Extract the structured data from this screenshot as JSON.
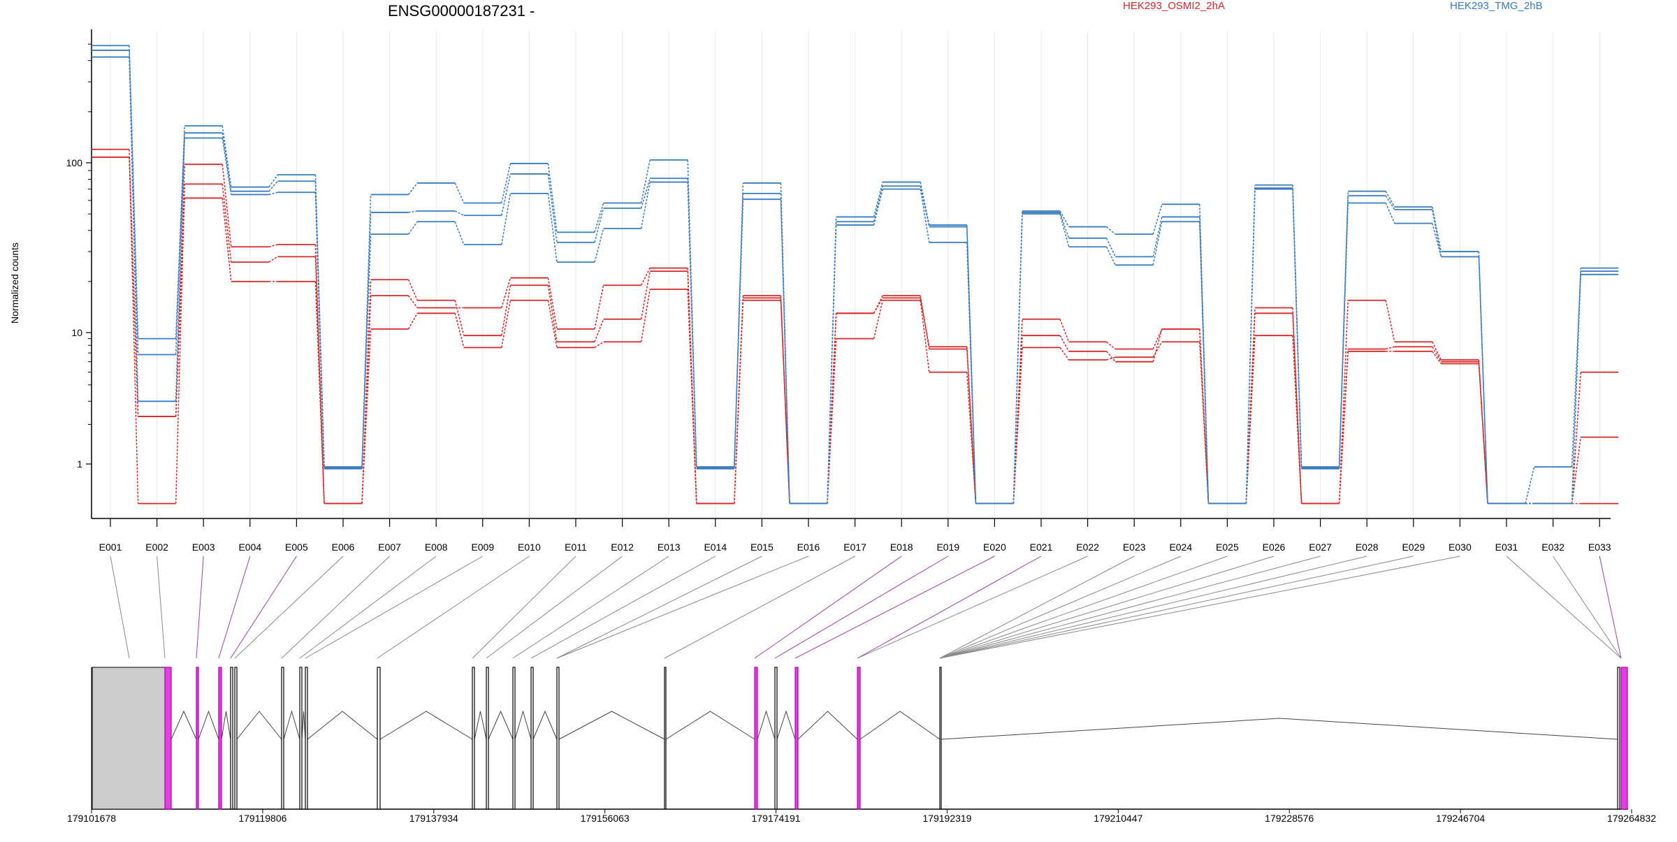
{
  "chart_data": {
    "type": "line",
    "title": "ENSG00000187231 -",
    "ylabel": "Normalized counts",
    "xlabel": "",
    "y_scale": "log",
    "y_ticks": [
      "1",
      "10",
      "100"
    ],
    "categories": [
      "E001",
      "E002",
      "E003",
      "E004",
      "E005",
      "E006",
      "E007",
      "E008",
      "E009",
      "E010",
      "E011",
      "E012",
      "E013",
      "E014",
      "E015",
      "E016",
      "E017",
      "E018",
      "E019",
      "E020",
      "E021",
      "E022",
      "E023",
      "E024",
      "E025",
      "E026",
      "E027",
      "E028",
      "E029",
      "E030",
      "E031",
      "E032",
      "E033"
    ],
    "groups": [
      {
        "name": "HEK293_OSMI2_2hA",
        "color": "#d62728"
      },
      {
        "name": "HEK293_TMG_2hB",
        "color": "#3a7bbf"
      }
    ],
    "series": [
      {
        "group": 0,
        "values": [
          120,
          0.5,
          75,
          26,
          28,
          0.5,
          16.5,
          14,
          14,
          21,
          10.5,
          19,
          24,
          0.5,
          16.5,
          0.5,
          13,
          16.5,
          7.5,
          0.5,
          12,
          8.5,
          7.5,
          10.5,
          0.5,
          14,
          0.5,
          15.5,
          8.5,
          6.2,
          0.5,
          0.5,
          5
        ]
      },
      {
        "group": 0,
        "values": [
          108,
          2.3,
          98,
          32,
          33,
          0.5,
          20.5,
          15.5,
          9.5,
          19,
          8.5,
          12,
          23,
          0.5,
          16,
          0.5,
          13,
          16,
          7.8,
          0.5,
          9.5,
          7.2,
          6,
          10.5,
          0.5,
          13,
          0.5,
          7.5,
          7.8,
          6,
          0.5,
          0.5,
          1.6
        ]
      },
      {
        "group": 0,
        "values": [
          108,
          2.3,
          62,
          20,
          20,
          0.5,
          10.5,
          13,
          7.7,
          15.5,
          7.7,
          8.5,
          18,
          0.5,
          15.5,
          0.5,
          9,
          15.5,
          5,
          0.5,
          7.7,
          6.2,
          6.5,
          8.5,
          0.5,
          9.5,
          0.5,
          7.2,
          7.2,
          5.8,
          0.5,
          0.5,
          0.5
        ]
      },
      {
        "group": 1,
        "values": [
          490,
          9,
          165,
          72,
          85,
          0.95,
          65,
          76,
          58,
          99,
          39,
          58,
          104,
          0.95,
          76,
          0.5,
          48,
          77,
          43,
          0.5,
          52,
          42,
          38,
          57,
          0.5,
          74,
          0.95,
          68,
          55,
          30,
          0.5,
          0.5,
          24
        ]
      },
      {
        "group": 1,
        "values": [
          460,
          6.8,
          150,
          68,
          78,
          0.93,
          51,
          52,
          49,
          86,
          34,
          54,
          81,
          0.93,
          66,
          0.5,
          45,
          73,
          42,
          0.5,
          51,
          36,
          28,
          48,
          0.5,
          71,
          0.93,
          64,
          53,
          28,
          0.5,
          0.95,
          23
        ]
      },
      {
        "group": 1,
        "values": [
          420,
          3,
          140,
          65,
          67,
          0.92,
          38,
          45,
          33,
          66,
          26,
          41,
          77,
          0.92,
          61,
          0.5,
          43,
          70,
          34,
          0.5,
          50,
          32,
          25,
          45,
          0.5,
          70,
          0.92,
          58,
          44,
          28,
          0.5,
          0.5,
          22
        ]
      }
    ],
    "genomic_axis": {
      "ticks": [
        "179101678",
        "179119806",
        "179137934",
        "179156063",
        "179174191",
        "179192319",
        "179210447",
        "179228576",
        "179246704",
        "179264832"
      ]
    },
    "legend_placement": "top"
  }
}
